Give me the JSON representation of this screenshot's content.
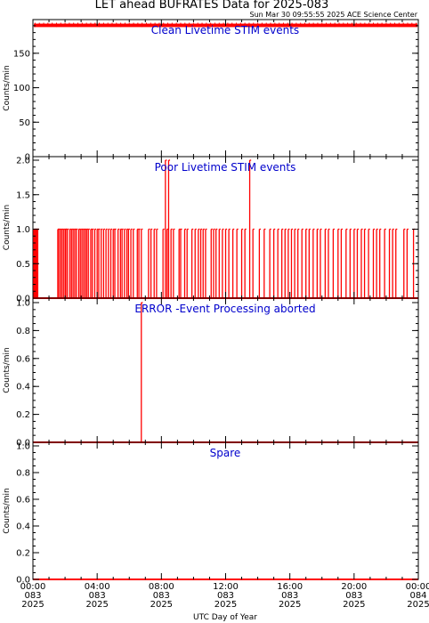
{
  "header": {
    "title": "LET ahead BUFRATES Data for 2025-083",
    "timestamp": "Sun Mar 30 09:55:55 2025 ACE Science Center"
  },
  "colors": {
    "data": "#ff0000",
    "panel_title": "#0000cc",
    "axes": "#000000"
  },
  "xaxis": {
    "label": "UTC Day of Year",
    "ticks": [
      {
        "hour": 0,
        "time": "00:00",
        "doy": "083",
        "year": "2025"
      },
      {
        "hour": 4,
        "time": "04:00",
        "doy": "083",
        "year": "2025"
      },
      {
        "hour": 8,
        "time": "08:00",
        "doy": "083",
        "year": "2025"
      },
      {
        "hour": 12,
        "time": "12:00",
        "doy": "083",
        "year": "2025"
      },
      {
        "hour": 16,
        "time": "16:00",
        "doy": "083",
        "year": "2025"
      },
      {
        "hour": 20,
        "time": "20:00",
        "doy": "083",
        "year": "2025"
      },
      {
        "hour": 24,
        "time": "00:00",
        "doy": "084",
        "year": "2025"
      }
    ],
    "minor_per_major": 4,
    "range_hours": [
      0,
      24
    ]
  },
  "chart_data": [
    {
      "type": "line",
      "title": "Clean Livetime STIM events",
      "ylabel": "Counts/min",
      "ylim": [
        0,
        195
      ],
      "yticks": [
        0,
        50,
        100,
        150
      ],
      "minor_step": 10,
      "mode": "band",
      "band_range": [
        188,
        193
      ],
      "baseline": 0,
      "spikes": []
    },
    {
      "type": "line",
      "title": "Poor Livetime STIM events",
      "ylabel": "Counts/min",
      "ylim": [
        0,
        2
      ],
      "yticks": [
        0.0,
        0.5,
        1.0,
        1.5,
        2.0
      ],
      "tick_decimals": 1,
      "minor_step": 0.1,
      "mode": "spikes",
      "baseline": 0,
      "spikes": [
        [
          0.05,
          1
        ],
        [
          0.1,
          1
        ],
        [
          0.15,
          1
        ],
        [
          0.2,
          1
        ],
        [
          0.25,
          1
        ],
        [
          0.3,
          1
        ],
        [
          1.55,
          1
        ],
        [
          1.6,
          1
        ],
        [
          1.7,
          1
        ],
        [
          1.8,
          1
        ],
        [
          1.9,
          1
        ],
        [
          2.0,
          1
        ],
        [
          2.05,
          1
        ],
        [
          2.15,
          1
        ],
        [
          2.3,
          1
        ],
        [
          2.4,
          1
        ],
        [
          2.5,
          1
        ],
        [
          2.6,
          1
        ],
        [
          2.7,
          1
        ],
        [
          2.85,
          1
        ],
        [
          2.95,
          1
        ],
        [
          3.05,
          1
        ],
        [
          3.15,
          1
        ],
        [
          3.25,
          1
        ],
        [
          3.35,
          1
        ],
        [
          3.45,
          1
        ],
        [
          3.6,
          1
        ],
        [
          3.7,
          1
        ],
        [
          3.85,
          1
        ],
        [
          4.0,
          1
        ],
        [
          4.1,
          1
        ],
        [
          4.25,
          1
        ],
        [
          4.4,
          1
        ],
        [
          4.55,
          1
        ],
        [
          4.7,
          1
        ],
        [
          4.85,
          1
        ],
        [
          5.0,
          1
        ],
        [
          5.1,
          1
        ],
        [
          5.3,
          1
        ],
        [
          5.45,
          1
        ],
        [
          5.55,
          1
        ],
        [
          5.7,
          1
        ],
        [
          5.85,
          1
        ],
        [
          5.95,
          1
        ],
        [
          6.1,
          1
        ],
        [
          6.25,
          1
        ],
        [
          6.5,
          1
        ],
        [
          6.6,
          1
        ],
        [
          6.75,
          1
        ],
        [
          7.2,
          1
        ],
        [
          7.35,
          1
        ],
        [
          7.55,
          1
        ],
        [
          7.7,
          1
        ],
        [
          8.1,
          1
        ],
        [
          8.25,
          2
        ],
        [
          8.35,
          1
        ],
        [
          8.45,
          2
        ],
        [
          8.6,
          1
        ],
        [
          8.75,
          1
        ],
        [
          9.1,
          1
        ],
        [
          9.2,
          1
        ],
        [
          9.45,
          1
        ],
        [
          9.6,
          1
        ],
        [
          9.9,
          1
        ],
        [
          10.1,
          1
        ],
        [
          10.3,
          1
        ],
        [
          10.45,
          1
        ],
        [
          10.6,
          1
        ],
        [
          10.75,
          1
        ],
        [
          11.1,
          1
        ],
        [
          11.25,
          1
        ],
        [
          11.4,
          1
        ],
        [
          11.6,
          1
        ],
        [
          11.8,
          1
        ],
        [
          12.0,
          1
        ],
        [
          12.2,
          1
        ],
        [
          12.45,
          1
        ],
        [
          12.7,
          1
        ],
        [
          13.0,
          1
        ],
        [
          13.2,
          1
        ],
        [
          13.5,
          2
        ],
        [
          13.7,
          1
        ],
        [
          14.1,
          1
        ],
        [
          14.4,
          1
        ],
        [
          14.75,
          1
        ],
        [
          15.0,
          1
        ],
        [
          15.25,
          1
        ],
        [
          15.5,
          1
        ],
        [
          15.7,
          1
        ],
        [
          15.9,
          1
        ],
        [
          16.1,
          1
        ],
        [
          16.3,
          1
        ],
        [
          16.5,
          1
        ],
        [
          16.75,
          1
        ],
        [
          17.0,
          1
        ],
        [
          17.2,
          1
        ],
        [
          17.45,
          1
        ],
        [
          17.7,
          1
        ],
        [
          17.9,
          1
        ],
        [
          18.2,
          1
        ],
        [
          18.4,
          1
        ],
        [
          18.7,
          1
        ],
        [
          19.0,
          1
        ],
        [
          19.2,
          1
        ],
        [
          19.5,
          1
        ],
        [
          19.75,
          1
        ],
        [
          20.0,
          1
        ],
        [
          20.2,
          1
        ],
        [
          20.45,
          1
        ],
        [
          20.65,
          1
        ],
        [
          20.9,
          1
        ],
        [
          21.2,
          1
        ],
        [
          21.4,
          1
        ],
        [
          21.6,
          1
        ],
        [
          21.9,
          1
        ],
        [
          22.2,
          1
        ],
        [
          22.4,
          1
        ],
        [
          22.6,
          1
        ],
        [
          23.1,
          1
        ],
        [
          23.3,
          1
        ],
        [
          23.7,
          1
        ]
      ]
    },
    {
      "type": "line",
      "title": "ERROR -Event Processing aborted",
      "ylabel": "Counts/min",
      "ylim": [
        0,
        1
      ],
      "yticks": [
        0.0,
        0.2,
        0.4,
        0.6,
        0.8,
        1.0
      ],
      "tick_decimals": 1,
      "minor_step": 0.05,
      "mode": "spikes",
      "baseline": 0,
      "spikes": [
        [
          6.75,
          1
        ]
      ]
    },
    {
      "type": "line",
      "title": "Spare",
      "ylabel": "Counts/min",
      "ylim": [
        0,
        1
      ],
      "yticks": [
        0.0,
        0.2,
        0.4,
        0.6,
        0.8,
        1.0
      ],
      "tick_decimals": 1,
      "minor_step": 0.05,
      "mode": "spikes",
      "baseline": 0,
      "spikes": []
    }
  ]
}
